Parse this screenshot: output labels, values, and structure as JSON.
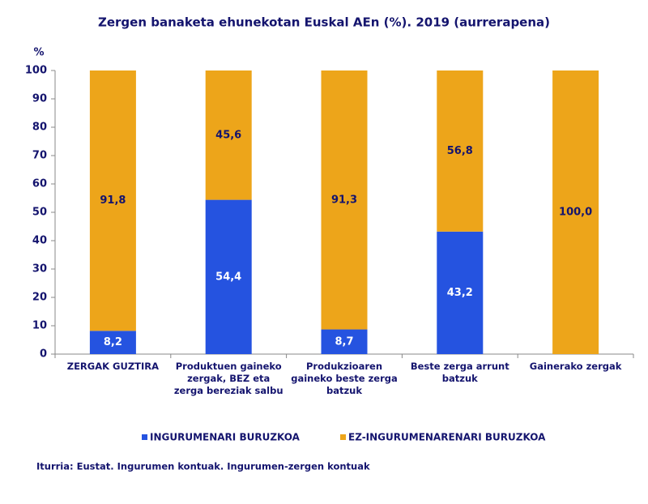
{
  "chart_data": {
    "type": "stacked_bar",
    "title": "Zergen banaketa ehunekotan Euskal AEn (%).  2019 (aurrerapena)",
    "y_unit_label": "%",
    "categories": [
      "ZERGAK GUZTIRA",
      "Produktuen gaineko zergak, BEZ eta zerga bereziak salbu",
      "Produkzioaren gaineko beste zerga batzuk",
      "Beste zerga arrunt batzuk",
      "Gainerako zergak"
    ],
    "series": [
      {
        "name": "INGURUMENARI BURUZKOA",
        "color": "#2553e0",
        "values": [
          8.2,
          54.4,
          8.7,
          43.2,
          0
        ],
        "value_labels": [
          "8,2",
          "54,4",
          "8,7",
          "43,2",
          null
        ]
      },
      {
        "name": "EZ-INGURUMENARENARI BURUZKOA",
        "color": "#eda51a",
        "values": [
          91.8,
          45.6,
          91.3,
          56.8,
          100.0
        ],
        "value_labels": [
          "91,8",
          "45,6",
          "91,3",
          "56,8",
          "100,0"
        ]
      }
    ],
    "ylim": [
      0,
      100
    ],
    "yticks": [
      0,
      10,
      20,
      30,
      40,
      50,
      60,
      70,
      80,
      90,
      100
    ],
    "grid": false,
    "source": "Iturria: Eustat. Ingurumen kontuak. Ingurumen-zergen kontuak"
  }
}
